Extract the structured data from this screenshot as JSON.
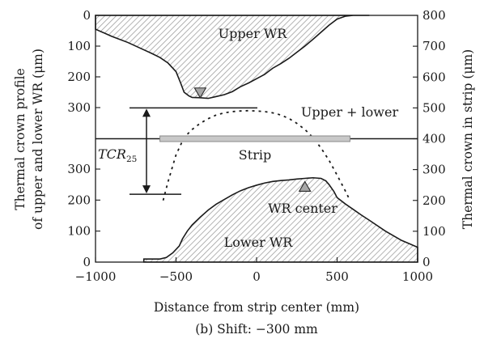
{
  "chart_data": {
    "type": "area",
    "caption": "(b) Shift: −300 mm",
    "xlabel": "Distance from strip center (mm)",
    "ylabel_left_line1": "Thermal crown profile",
    "ylabel_left_line2": "of upper and lower WR (μm)",
    "ylabel_right": "Thermal crown in strip (μm)",
    "xlim": [
      -1000,
      1000
    ],
    "x_ticks": [
      -1000,
      -500,
      0,
      500,
      1000
    ],
    "x_tick_labels": [
      "−1000",
      "−500",
      "0",
      "500",
      "1000"
    ],
    "upper_ticks": [
      0,
      100,
      200,
      300
    ],
    "lower_ticks": [
      0,
      100,
      200,
      300
    ],
    "right_ticks": [
      0,
      100,
      200,
      300,
      400,
      500,
      600,
      700,
      800
    ],
    "labels": {
      "upper_wr": "Upper WR",
      "lower_wr": "Lower WR",
      "upper_lower": "Upper + lower",
      "strip": "Strip",
      "wr_center": "WR center",
      "tcr_main": "TCR",
      "tcr_sub": "25"
    },
    "series": [
      {
        "name": "Upper WR",
        "axis": "left-upper (depth, 0 at top)",
        "x": [
          -1000,
          -900,
          -800,
          -700,
          -650,
          -600,
          -550,
          -500,
          -470,
          -450,
          -420,
          -400,
          -350,
          -300,
          -250,
          -200,
          -150,
          -100,
          -50,
          0,
          50,
          100,
          150,
          200,
          250,
          300,
          350,
          400,
          450,
          500,
          550,
          600,
          650,
          700
        ],
        "values": [
          45,
          68,
          88,
          112,
          124,
          137,
          155,
          183,
          222,
          250,
          262,
          267,
          268,
          270,
          264,
          258,
          248,
          232,
          220,
          206,
          192,
          172,
          157,
          140,
          120,
          100,
          78,
          55,
          32,
          12,
          3,
          0,
          0,
          0
        ]
      },
      {
        "name": "Lower WR",
        "axis": "left-lower (height, 0 at bottom)",
        "x": [
          -700,
          -600,
          -560,
          -520,
          -480,
          -460,
          -430,
          -400,
          -350,
          -300,
          -250,
          -200,
          -150,
          -100,
          -50,
          0,
          50,
          100,
          150,
          200,
          250,
          300,
          350,
          400,
          430,
          450,
          480,
          500,
          550,
          600,
          650,
          700,
          800,
          900,
          1000
        ],
        "values": [
          10,
          10,
          15,
          30,
          52,
          75,
          100,
          120,
          145,
          168,
          187,
          202,
          217,
          230,
          240,
          248,
          255,
          260,
          263,
          265,
          268,
          270,
          272,
          270,
          262,
          250,
          228,
          208,
          188,
          170,
          152,
          135,
          100,
          70,
          48
        ]
      },
      {
        "name": "Upper + lower",
        "axis": "right",
        "x": [
          -580,
          -550,
          -500,
          -450,
          -400,
          -350,
          -300,
          -250,
          -200,
          -150,
          -100,
          -50,
          0,
          50,
          100,
          150,
          200,
          250,
          300,
          350,
          400,
          450,
          500,
          550,
          580
        ],
        "values": [
          200,
          260,
          348,
          404,
          430,
          450,
          465,
          477,
          484,
          488,
          490,
          491,
          490,
          488,
          484,
          477,
          466,
          450,
          430,
          404,
          370,
          330,
          282,
          232,
          200
        ]
      }
    ],
    "strip_level_right": 400,
    "strip_x_range": [
      -600,
      580
    ],
    "tcr25_top_right": 500,
    "tcr25_bottom_right": 220,
    "markers": [
      {
        "name": "upper-wr-center",
        "x": -350,
        "y_left_upper": 252,
        "shape": "triangle-down"
      },
      {
        "name": "lower-wr-center",
        "x": 300,
        "y_left_lower": 244,
        "shape": "triangle-up"
      }
    ]
  }
}
